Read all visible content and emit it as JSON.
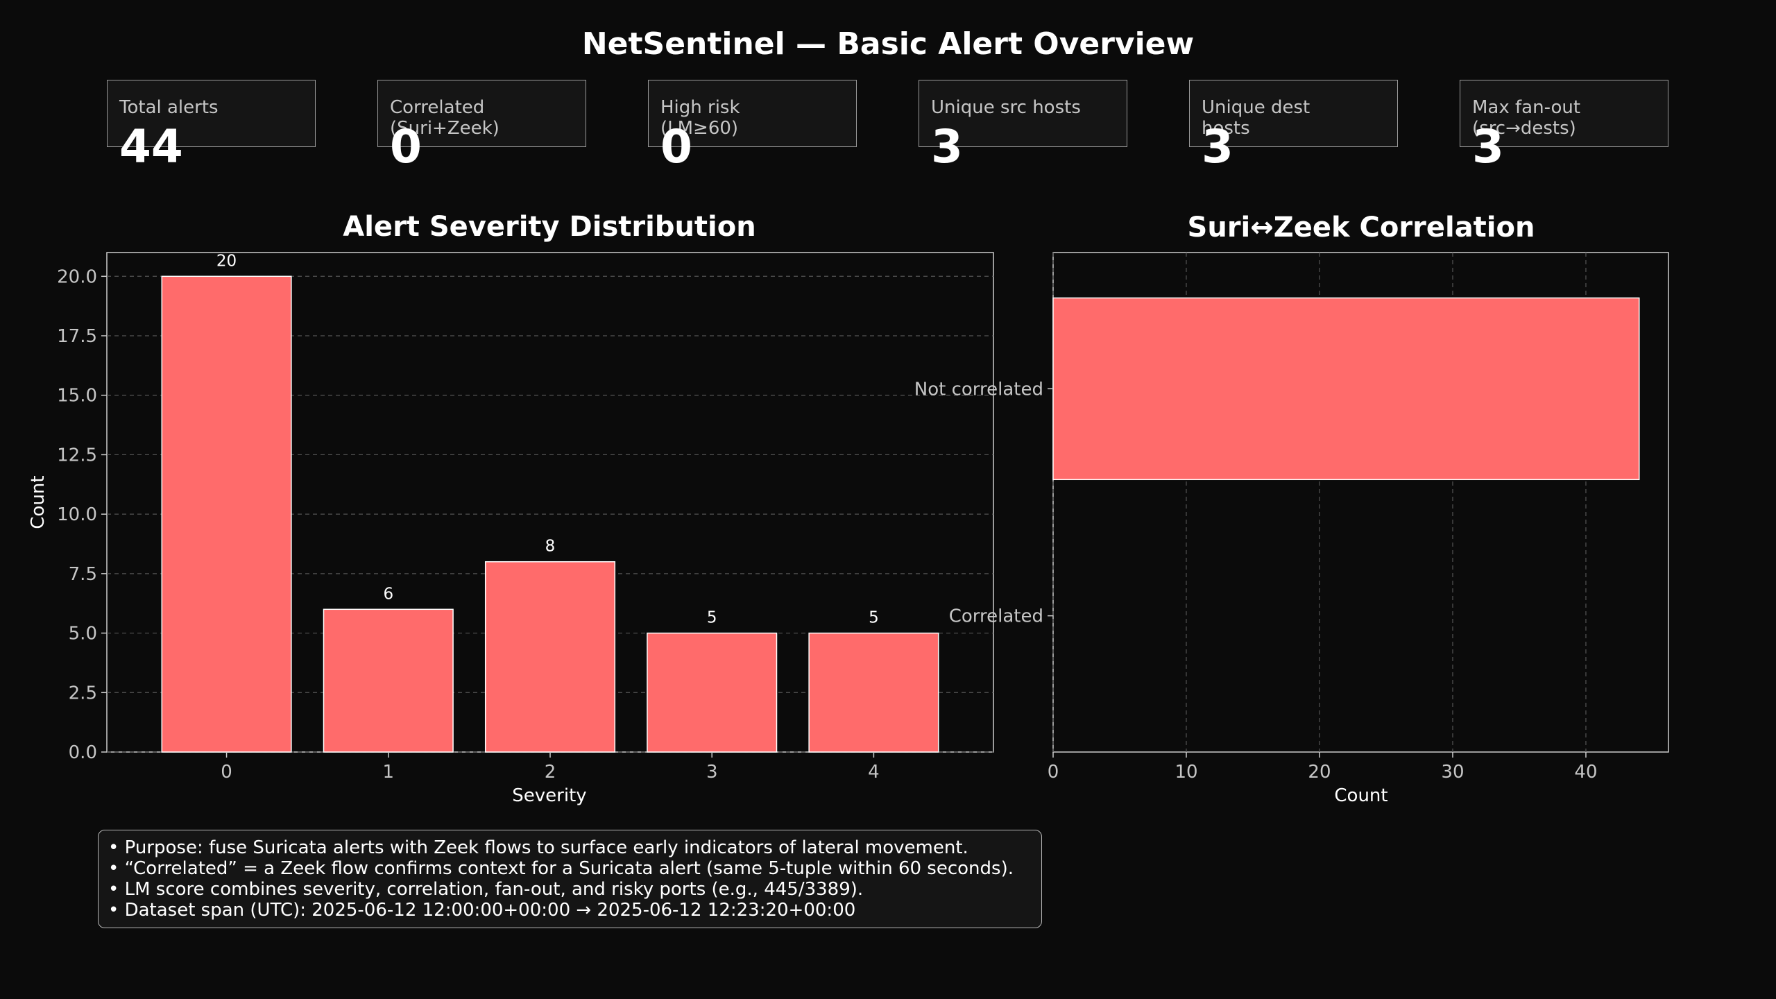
{
  "title": "NetSentinel — Basic Alert Overview",
  "kpis": [
    {
      "label": "Total alerts",
      "value": "44"
    },
    {
      "label": "Correlated\n(Suri+Zeek)",
      "value": "0"
    },
    {
      "label": "High risk\n(LM≥60)",
      "value": "0"
    },
    {
      "label": "Unique src hosts",
      "value": "3"
    },
    {
      "label": "Unique dest\nhosts",
      "value": "3"
    },
    {
      "label": "Max fan-out\n(src→dests)",
      "value": "3"
    }
  ],
  "colors": {
    "bar": "#ff6b6b",
    "background": "#0b0b0b",
    "text": "#ffffff"
  },
  "chart_data": [
    {
      "type": "bar",
      "title": "Alert Severity Distribution",
      "xlabel": "Severity",
      "ylabel": "Count",
      "categories": [
        "0",
        "1",
        "2",
        "3",
        "4"
      ],
      "values": [
        20,
        6,
        8,
        5,
        5
      ],
      "data_labels": [
        "20",
        "6",
        "8",
        "5",
        "5"
      ],
      "ylim": [
        0,
        21
      ],
      "yticks": [
        "0.0",
        "2.5",
        "5.0",
        "7.5",
        "10.0",
        "12.5",
        "15.0",
        "17.5",
        "20.0"
      ],
      "grid": true
    },
    {
      "type": "bar",
      "orientation": "horizontal",
      "title": "Suri↔Zeek Correlation",
      "xlabel": "Count",
      "categories": [
        "Not correlated",
        "Correlated"
      ],
      "values": [
        44,
        0
      ],
      "xlim": [
        0,
        46.2
      ],
      "xticks": [
        "0",
        "10",
        "20",
        "30",
        "40"
      ],
      "grid": true
    }
  ],
  "notes": [
    "• Purpose: fuse Suricata alerts with Zeek flows to surface early indicators of lateral movement.",
    "• “Correlated” = a Zeek flow confirms context for a Suricata alert (same 5-tuple within 60 seconds).",
    "• LM score combines severity, correlation, fan-out, and risky ports (e.g., 445/3389).",
    "• Dataset span (UTC): 2025-06-12 12:00:00+00:00 → 2025-06-12 12:23:20+00:00"
  ]
}
